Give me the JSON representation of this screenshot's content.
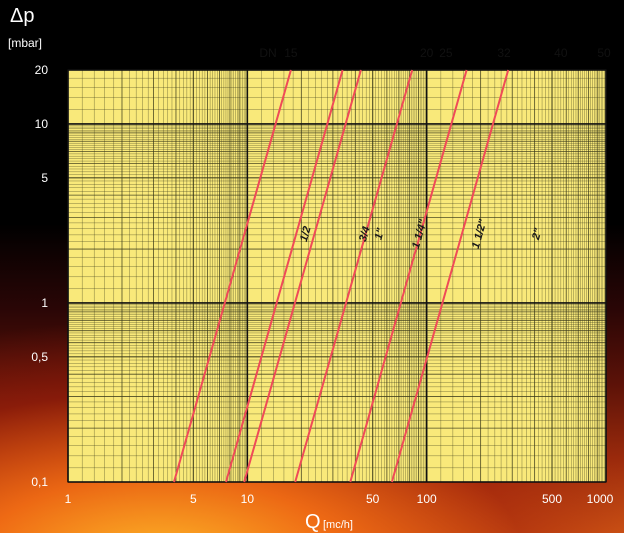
{
  "chart_data": {
    "type": "line",
    "title": "",
    "xlabel": "Q",
    "xlabel_unit": "[mc/h]",
    "ylabel": "Δp",
    "ylabel_unit": "[mbar]",
    "x_scale": "log",
    "y_scale": "log",
    "xlim": [
      1,
      1000
    ],
    "ylim": [
      0.1,
      20
    ],
    "grid": true,
    "x_ticks": [
      {
        "value": 1,
        "label": "1"
      },
      {
        "value": 5,
        "label": "5"
      },
      {
        "value": 10,
        "label": "10"
      },
      {
        "value": 50,
        "label": "50"
      },
      {
        "value": 100,
        "label": "100"
      },
      {
        "value": 500,
        "label": "500"
      },
      {
        "value": 1000,
        "label": "1000"
      }
    ],
    "y_ticks": [
      {
        "value": 0.1,
        "label": "0,1"
      },
      {
        "value": 0.5,
        "label": "0,5"
      },
      {
        "value": 1,
        "label": "1"
      },
      {
        "value": 5,
        "label": "5"
      },
      {
        "value": 10,
        "label": "10"
      },
      {
        "value": 20,
        "label": "20"
      }
    ],
    "dn_header": "DN",
    "dn_labels": [
      {
        "label": "15",
        "q": 17.5
      },
      {
        "label": "20",
        "q": 100
      },
      {
        "label": "25",
        "q": 128
      },
      {
        "label": "32",
        "q": 270
      },
      {
        "label": "40",
        "q": 560
      },
      {
        "label": "50",
        "q": 1000
      }
    ],
    "series": [
      {
        "name": "1/2",
        "label_q": 22,
        "label_dp": 2.4,
        "x": [
          3.9,
          17.5
        ],
        "y": [
          0.1,
          20
        ]
      },
      {
        "name": "3/4",
        "label_q": 47,
        "label_dp": 2.4,
        "x": [
          7.6,
          34
        ],
        "y": [
          0.1,
          20
        ]
      },
      {
        "name": "1\"",
        "label_q": 57,
        "label_dp": 2.4,
        "x": [
          9.6,
          43
        ],
        "y": [
          0.1,
          20
        ]
      },
      {
        "name": "1 1/4\"",
        "label_q": 95,
        "label_dp": 2.4,
        "x": [
          18.5,
          83
        ],
        "y": [
          0.1,
          20
        ]
      },
      {
        "name": "1 1/2\"",
        "label_q": 205,
        "label_dp": 2.4,
        "x": [
          37.5,
          167
        ],
        "y": [
          0.1,
          20
        ]
      },
      {
        "name": "2\"",
        "label_q": 430,
        "label_dp": 2.4,
        "x": [
          64,
          285
        ],
        "y": [
          0.1,
          20
        ]
      }
    ],
    "colors": {
      "plot_background": "#f9e97a",
      "minor_grid": "#3a3a1a",
      "major_grid": "#111111",
      "curve": "#ef4b57"
    }
  }
}
